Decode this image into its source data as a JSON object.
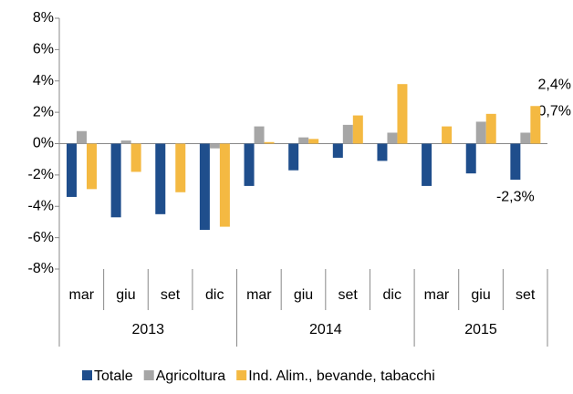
{
  "chart_data": {
    "type": "bar",
    "category_groups": [
      {
        "label": "2013",
        "categories": [
          "mar",
          "giu",
          "set",
          "dic"
        ]
      },
      {
        "label": "2014",
        "categories": [
          "mar",
          "giu",
          "set",
          "dic"
        ]
      },
      {
        "label": "2015",
        "categories": [
          "mar",
          "giu",
          "set"
        ]
      }
    ],
    "series": [
      {
        "name": "Totale",
        "color": "#1f4e8c",
        "values": [
          -3.4,
          -4.7,
          -4.5,
          -5.5,
          -2.7,
          -1.7,
          -0.9,
          -1.1,
          -2.7,
          -1.9,
          -2.3
        ],
        "value_labels": [
          null,
          null,
          null,
          null,
          null,
          null,
          null,
          null,
          null,
          null,
          "-2,3%"
        ]
      },
      {
        "name": "Agricoltura",
        "color": "#a6a6a6",
        "values": [
          0.8,
          0.2,
          0,
          -0.3,
          1.1,
          0.4,
          1.2,
          0.7,
          0,
          1.4,
          0.7
        ],
        "value_labels": [
          null,
          null,
          null,
          null,
          null,
          null,
          null,
          null,
          null,
          null,
          "0,7%"
        ]
      },
      {
        "name": "Ind. Alim., bevande, tabacchi",
        "color": "#f4b942",
        "values": [
          -2.9,
          -1.8,
          -3.1,
          -5.3,
          0.1,
          0.3,
          1.8,
          3.8,
          1.1,
          1.9,
          2.4
        ],
        "value_labels": [
          null,
          null,
          null,
          null,
          null,
          null,
          null,
          null,
          null,
          null,
          "2,4%"
        ]
      }
    ],
    "ylim": [
      -8,
      8
    ],
    "yticks": [
      {
        "value": -8,
        "label": "-8%"
      },
      {
        "value": -6,
        "label": "-6%"
      },
      {
        "value": -4,
        "label": "-4%"
      },
      {
        "value": -2,
        "label": "-2%"
      },
      {
        "value": 0,
        "label": "0%"
      },
      {
        "value": 2,
        "label": "2%"
      },
      {
        "value": 4,
        "label": "4%"
      },
      {
        "value": 6,
        "label": "6%"
      },
      {
        "value": 8,
        "label": "8%"
      }
    ],
    "legend": "bottom"
  }
}
